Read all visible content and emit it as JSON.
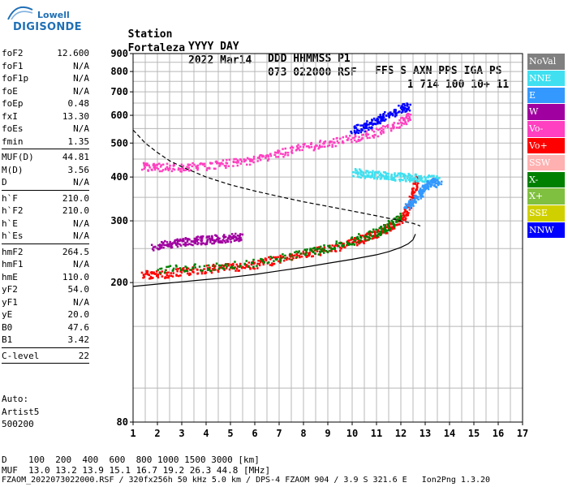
{
  "logo": {
    "top": "Lowell",
    "bottom": "DIGISONDE"
  },
  "header": {
    "line1": [
      "Station",
      "YYYY DAY",
      "DDD HHMMSS P1",
      "FFS S AXN PPS IGA PS"
    ],
    "line2": [
      "Fortaleza",
      "2022 Mar14",
      "073 022000 RSF",
      "1 714 100 10+ 11"
    ]
  },
  "params": {
    "group1": [
      {
        "k": "foF2",
        "v": "12.600"
      },
      {
        "k": "foF1",
        "v": "N/A"
      },
      {
        "k": "foF1p",
        "v": "N/A"
      },
      {
        "k": "foE",
        "v": "N/A"
      },
      {
        "k": "foEp",
        "v": "0.48"
      },
      {
        "k": "fxI",
        "v": "13.30"
      },
      {
        "k": "foEs",
        "v": "N/A"
      },
      {
        "k": "fmin",
        "v": "1.35"
      }
    ],
    "group2": [
      {
        "k": "MUF(D)",
        "v": "44.81"
      },
      {
        "k": "M(D)",
        "v": "3.56"
      },
      {
        "k": "D",
        "v": "N/A"
      }
    ],
    "group3": [
      {
        "k": "h`F",
        "v": "210.0"
      },
      {
        "k": "h`F2",
        "v": "210.0"
      },
      {
        "k": "h`E",
        "v": "N/A"
      },
      {
        "k": "h`Es",
        "v": "N/A"
      }
    ],
    "group4": [
      {
        "k": "hmF2",
        "v": "264.5"
      },
      {
        "k": "hmF1",
        "v": "N/A"
      },
      {
        "k": "hmE",
        "v": "110.0"
      },
      {
        "k": "yF2",
        "v": "54.0"
      },
      {
        "k": "yF1",
        "v": "N/A"
      },
      {
        "k": "yE",
        "v": "20.0"
      },
      {
        "k": "B0",
        "v": "47.6"
      },
      {
        "k": "B1",
        "v": "3.42"
      }
    ],
    "group5": [
      {
        "k": "C-level",
        "v": "22"
      }
    ]
  },
  "auto": {
    "line1": "Auto:",
    "line2": "Artist5",
    "line3": "500200"
  },
  "footer": {
    "d_line": "D    100  200  400  600  800 1000 1500 3000 [km]",
    "muf_line": "MUF  13.0 13.2 13.9 15.1 16.7 19.2 26.3 44.8 [MHz]",
    "file_line": "FZAOM_2022073022000.RSF / 320fx256h 50 kHz 5.0 km / DPS-4 FZAOM 904 / 3.9 S 321.6 E   Ion2Png 1.3.20"
  },
  "legend": [
    {
      "label": "NoVal",
      "color": "#808080"
    },
    {
      "label": "NNE",
      "color": "#40e0f0"
    },
    {
      "label": "E",
      "color": "#3399ff"
    },
    {
      "label": "W",
      "color": "#a000a0"
    },
    {
      "label": "Vo-",
      "color": "#ff40c0"
    },
    {
      "label": "Vo+",
      "color": "#ff0000"
    },
    {
      "label": "SSW",
      "color": "#ffb0b0"
    },
    {
      "label": "X-",
      "color": "#008000"
    },
    {
      "label": "X+",
      "color": "#80c040"
    },
    {
      "label": "SSE",
      "color": "#d0d000"
    },
    {
      "label": "NNW",
      "color": "#0000ff"
    }
  ],
  "chart_data": {
    "type": "scatter",
    "title": "",
    "xlabel": "",
    "ylabel": "",
    "xlim": [
      1,
      17
    ],
    "ylim": [
      80,
      900
    ],
    "yscale": "log",
    "grid": true,
    "x_ticks": [
      1,
      2,
      3,
      4,
      5,
      6,
      7,
      8,
      9,
      10,
      11,
      12,
      13,
      14,
      15,
      16,
      17
    ],
    "y_ticks": [
      80,
      200,
      300,
      400,
      500,
      600,
      700,
      800,
      900
    ],
    "series": [
      {
        "name": "Vo+",
        "color": "#ff0000",
        "x": [
          1.4,
          2.0,
          3.0,
          4.0,
          5.0,
          6.0,
          7.0,
          8.0,
          9.0,
          10.0,
          10.5,
          11.0,
          11.5,
          12.0,
          12.3,
          12.5,
          12.6
        ],
        "y": [
          212,
          212,
          215,
          220,
          222,
          226,
          235,
          242,
          250,
          262,
          270,
          278,
          288,
          305,
          330,
          360,
          400
        ]
      },
      {
        "name": "Vo-",
        "color": "#ff40c0",
        "x": [
          1.4,
          2.0,
          3.0,
          4.0,
          5.0,
          6.0,
          7.0,
          8.0,
          9.0,
          10.0,
          11.0,
          12.0,
          12.4
        ],
        "y": [
          430,
          428,
          428,
          432,
          440,
          452,
          470,
          488,
          502,
          518,
          540,
          575,
          600
        ]
      },
      {
        "name": "W",
        "color": "#a000a0",
        "x": [
          1.8,
          2.5,
          3.0,
          3.5,
          4.0,
          4.5,
          5.0,
          5.5
        ],
        "y": [
          255,
          258,
          262,
          265,
          266,
          268,
          270,
          272
        ]
      },
      {
        "name": "NNE",
        "color": "#40e0f0",
        "x": [
          10.0,
          10.5,
          11.0,
          11.5,
          12.0,
          12.5,
          13.0,
          13.5
        ],
        "y": [
          415,
          410,
          408,
          405,
          402,
          400,
          398,
          395
        ]
      },
      {
        "name": "E",
        "color": "#3399ff",
        "x": [
          12.2,
          12.5,
          12.8,
          13.0,
          13.3,
          13.6
        ],
        "y": [
          330,
          345,
          365,
          380,
          390,
          385
        ]
      },
      {
        "name": "X-",
        "color": "#008000",
        "x": [
          2.0,
          4.0,
          6.0,
          8.0,
          9.0,
          10.0,
          11.0,
          11.5,
          12.0
        ],
        "y": [
          218,
          222,
          228,
          245,
          252,
          265,
          280,
          292,
          310
        ]
      },
      {
        "name": "NNW",
        "color": "#0000ff",
        "x": [
          10.0,
          10.5,
          11.0,
          11.3,
          12.0,
          12.3
        ],
        "y": [
          545,
          560,
          580,
          600,
          630,
          640
        ]
      }
    ],
    "profile": {
      "x": [
        1.0,
        2.0,
        3.0,
        4.0,
        5.0,
        6.0,
        7.0,
        8.0,
        9.0,
        10.0,
        11.0,
        11.5,
        12.0,
        12.3,
        12.5,
        12.6
      ],
      "y": [
        195,
        198,
        201,
        204,
        207,
        211,
        216,
        221,
        227,
        233,
        240,
        245,
        252,
        258,
        265,
        275
      ]
    },
    "muf_curve": {
      "x": [
        1.0,
        1.5,
        2.0,
        2.5,
        3.0,
        4.0,
        5.0,
        6.0,
        7.0,
        8.0,
        9.0,
        10.0,
        10.5,
        11.0,
        11.5,
        12.0,
        12.5,
        12.8
      ],
      "y": [
        545,
        500,
        470,
        445,
        428,
        400,
        380,
        365,
        352,
        340,
        330,
        320,
        315,
        310,
        305,
        300,
        295,
        290
      ]
    }
  }
}
